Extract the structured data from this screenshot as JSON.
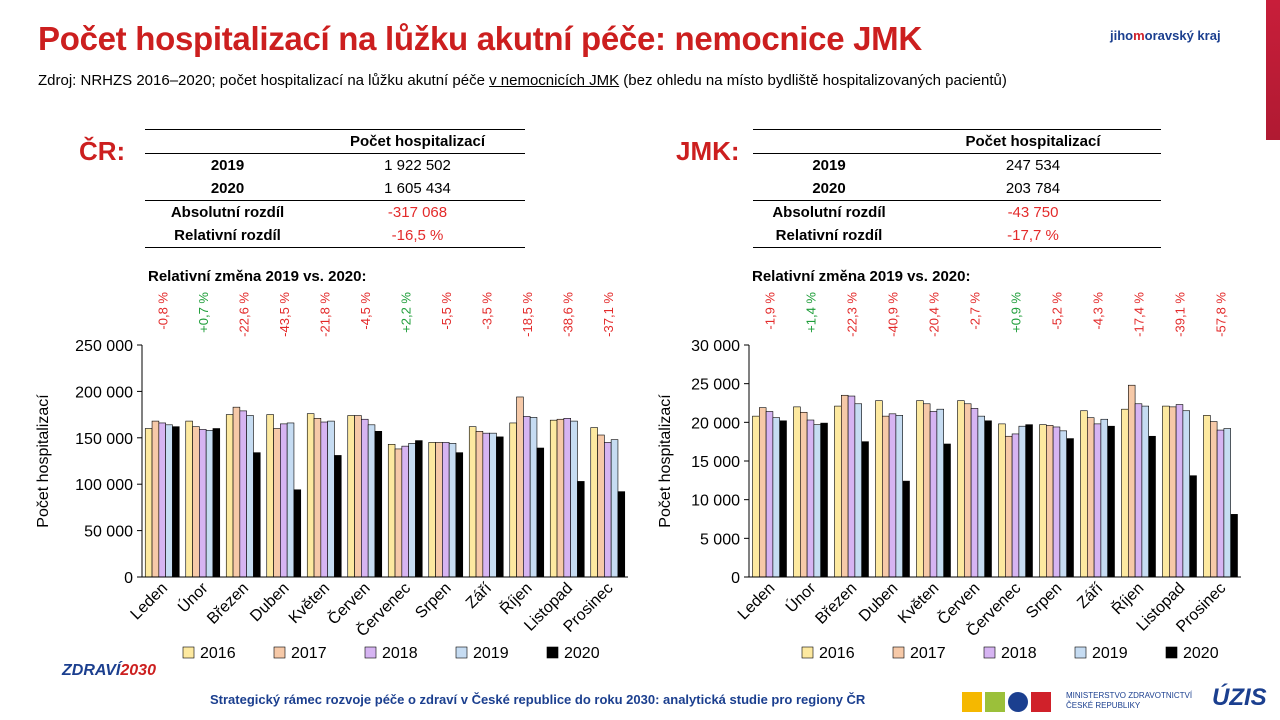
{
  "title": "Počet hospitalizací na lůžku akutní péče: nemocnice JMK",
  "logo_top": {
    "a": "jiho",
    "b": "m",
    "c": "oravský kraj"
  },
  "source": {
    "pre": "Zdroj: NRHZS 2016–2020; počet hospitalizací na lůžku akutní péče ",
    "link": "v nemocnicích JMK",
    "post": " (bez ohledu na místo bydliště hospitalizovaných pacientů)"
  },
  "cr": {
    "label": "ČR:",
    "header": "Počet hospitalizací",
    "rows": [
      {
        "label": "2019",
        "value": "1 922 502"
      },
      {
        "label": "2020",
        "value": "1 605 434"
      },
      {
        "label": "Absolutní rozdíl",
        "value": "-317 068"
      },
      {
        "label": "Relativní rozdíl",
        "value": "-16,5 %"
      }
    ],
    "rel_title": "Relativní změna 2019 vs. 2020:"
  },
  "jmk": {
    "label": "JMK:",
    "header": "Počet hospitalizací",
    "rows": [
      {
        "label": "2019",
        "value": "247 534"
      },
      {
        "label": "2020",
        "value": "203 784"
      },
      {
        "label": "Absolutní rozdíl",
        "value": "-43 750"
      },
      {
        "label": "Relativní rozdíl",
        "value": "-17,7 %"
      }
    ],
    "rel_title": "Relativní změna 2019 vs. 2020:"
  },
  "colors": {
    "2016": "#fde9a0",
    "2017": "#f6c9a8",
    "2018": "#d6b4f2",
    "2019": "#c6dcf2",
    "2020": "#000000",
    "negative": "#e32a2a",
    "positive": "#1f9e3a",
    "title_red": "#cc1f1f"
  },
  "chart_data": [
    {
      "type": "bar",
      "ylabel": "Počet hospitalizací",
      "ylim": [
        0,
        250000
      ],
      "yticks": [
        0,
        50000,
        100000,
        150000,
        200000,
        250000
      ],
      "ytick_labels": [
        "0",
        "50 000",
        "100 000",
        "150 000",
        "200 000",
        "250 000"
      ],
      "categories": [
        "Leden",
        "Únor",
        "Březen",
        "Duben",
        "Květen",
        "Červen",
        "Červenec",
        "Srpen",
        "Září",
        "Říjen",
        "Listopad",
        "Prosinec"
      ],
      "series": [
        {
          "name": "2016",
          "values": [
            160000,
            168000,
            175000,
            175000,
            176000,
            174000,
            143000,
            145000,
            162000,
            166000,
            169000,
            161000
          ]
        },
        {
          "name": "2017",
          "values": [
            168000,
            162000,
            183000,
            160000,
            171000,
            174000,
            138000,
            145000,
            157000,
            194000,
            170000,
            153000
          ]
        },
        {
          "name": "2018",
          "values": [
            166000,
            159000,
            179000,
            165000,
            167000,
            170000,
            141000,
            145000,
            155000,
            173000,
            171000,
            145000
          ]
        },
        {
          "name": "2019",
          "values": [
            164000,
            158000,
            174000,
            166000,
            168000,
            164000,
            144000,
            144000,
            155000,
            172000,
            168000,
            148000
          ]
        },
        {
          "name": "2020",
          "values": [
            162000,
            160000,
            134000,
            94000,
            131000,
            157000,
            147000,
            134000,
            151000,
            139000,
            103000,
            92000
          ]
        }
      ],
      "relative_change": [
        "-0,8 %",
        "+0,7 %",
        "-22,6 %",
        "-43,5 %",
        "-21,8 %",
        "-4,5 %",
        "+2,2 %",
        "-5,5 %",
        "-3,5 %",
        "-18,5 %",
        "-38,6 %",
        "-37,1 %"
      ]
    },
    {
      "type": "bar",
      "ylabel": "Počet hospitalizací",
      "ylim": [
        0,
        30000
      ],
      "yticks": [
        0,
        5000,
        10000,
        15000,
        20000,
        25000,
        30000
      ],
      "ytick_labels": [
        "0",
        "5 000",
        "10 000",
        "15 000",
        "20 000",
        "25 000",
        "30 000"
      ],
      "categories": [
        "Leden",
        "Únor",
        "Březen",
        "Duben",
        "Květen",
        "Červen",
        "Červenec",
        "Srpen",
        "Září",
        "Říjen",
        "Listopad",
        "Prosinec"
      ],
      "series": [
        {
          "name": "2016",
          "values": [
            20800,
            22000,
            22100,
            22800,
            22800,
            22800,
            19800,
            19700,
            21500,
            21700,
            22100,
            20900
          ]
        },
        {
          "name": "2017",
          "values": [
            21900,
            21300,
            23500,
            20800,
            22400,
            22400,
            18200,
            19600,
            20600,
            24800,
            22000,
            20100
          ]
        },
        {
          "name": "2018",
          "values": [
            21400,
            20300,
            23400,
            21100,
            21400,
            21800,
            18500,
            19400,
            19800,
            22400,
            22300,
            19000
          ]
        },
        {
          "name": "2019",
          "values": [
            20600,
            19700,
            22400,
            20900,
            21700,
            20800,
            19500,
            18900,
            20400,
            22100,
            21500,
            19200
          ]
        },
        {
          "name": "2020",
          "values": [
            20200,
            19900,
            17500,
            12400,
            17200,
            20200,
            19700,
            17900,
            19500,
            18200,
            13100,
            8100
          ]
        }
      ],
      "relative_change": [
        "-1,9 %",
        "+1,4 %",
        "-22,3 %",
        "-40,9 %",
        "-20,4 %",
        "-2,7 %",
        "+0,9 %",
        "-5,2 %",
        "-4,3 %",
        "-17,4 %",
        "-39,1 %",
        "-57,8 %"
      ]
    }
  ],
  "footer": {
    "text": "Strategický rámec rozvoje péče o zdraví v České republice do roku 2030: analytická studie pro regiony ČR",
    "logo_zdravi_a": "ZDRAVÍ",
    "logo_zdravi_b": "2030",
    "mz": "MINISTERSTVO ZDRAVOTNICTVÍ ČESKÉ REPUBLIKY",
    "uzis": "ÚZIS"
  }
}
